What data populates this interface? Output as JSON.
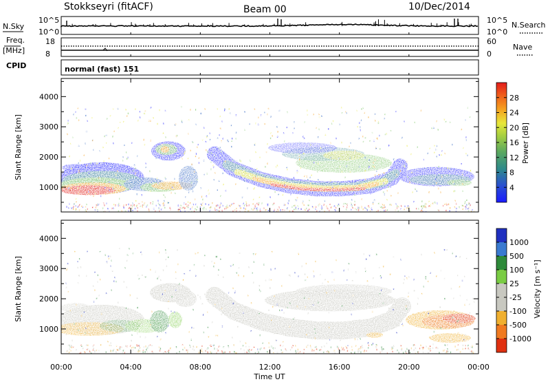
{
  "header": {
    "station": "Stokkseyri (fitACF)",
    "beam": "Beam 00",
    "date": "10/Dec/2014"
  },
  "noise_panel": {
    "left_label": "N.Sky",
    "left_tick_top": "10^5",
    "left_tick_bottom": "10^0",
    "right_label": "N.Search",
    "right_tick_top": "10^5",
    "right_tick_bottom": "10^0"
  },
  "freq_panel": {
    "left_label_top": "Freq.",
    "left_label_unit": "[MHz]",
    "left_tick_top": "18",
    "left_tick_bottom": "8",
    "right_label": "Nave",
    "right_tick_top": "60",
    "right_tick_bottom": "0"
  },
  "cpid_panel": {
    "label": "CPID",
    "value": "normal (fast) 151"
  },
  "chart_data": [
    {
      "type": "heatmap",
      "name": "power",
      "ylabel": "Slant Range [km]",
      "yticks": [
        1000,
        2000,
        3000,
        4000
      ],
      "ylim": [
        180,
        4600
      ],
      "colorbar": {
        "label": "Power [dB]",
        "ticks": [
          "4",
          "8",
          "12",
          "16",
          "20",
          "24",
          "28"
        ],
        "colors": [
          "#1a1aff",
          "#2a60c0",
          "#3a8a90",
          "#6fbf55",
          "#e7e73a",
          "#f5a020",
          "#ef5a1a",
          "#e21b1b"
        ]
      }
    },
    {
      "type": "heatmap",
      "name": "velocity",
      "ylabel": "Slant Range [km]",
      "yticks": [
        1000,
        2000,
        3000,
        4000
      ],
      "ylim": [
        180,
        4600
      ],
      "colorbar": {
        "label": "Velocity [m s⁻¹]",
        "ticks": [
          "1000",
          "500",
          "100",
          "25",
          "-25",
          "-100",
          "-500",
          "-1000"
        ],
        "colors": [
          "#2030c0",
          "#3a7ad0",
          "#2e8a3a",
          "#7acc44",
          "#c8c8c0",
          "#c8c8c0",
          "#f0b030",
          "#f07a20",
          "#e03010"
        ]
      }
    }
  ],
  "time_axis": {
    "label": "Time UT",
    "ticks": [
      "00:00",
      "04:00",
      "08:00",
      "12:00",
      "16:00",
      "20:00",
      "00:00"
    ]
  }
}
